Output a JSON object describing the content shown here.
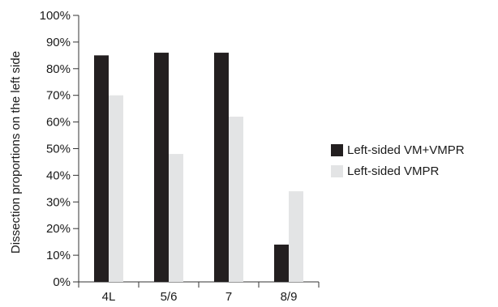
{
  "chart_data": {
    "type": "bar",
    "categories": [
      "4L",
      "5/6",
      "7",
      "8/9"
    ],
    "series": [
      {
        "name": "Left-sided VM+VMPR",
        "values": [
          85,
          86,
          86,
          14
        ],
        "color": "#231f20"
      },
      {
        "name": "Left-sided VMPR",
        "values": [
          70,
          48,
          62,
          34
        ],
        "color": "#e3e4e5"
      }
    ],
    "ylabel": "Dissection proportions on the left side",
    "xlabel": "",
    "ylim": [
      0,
      100
    ],
    "yticks": [
      "0%",
      "10%",
      "20%",
      "30%",
      "40%",
      "50%",
      "60%",
      "70%",
      "80%",
      "90%",
      "100%"
    ],
    "grid": false,
    "legend_position": "right"
  }
}
